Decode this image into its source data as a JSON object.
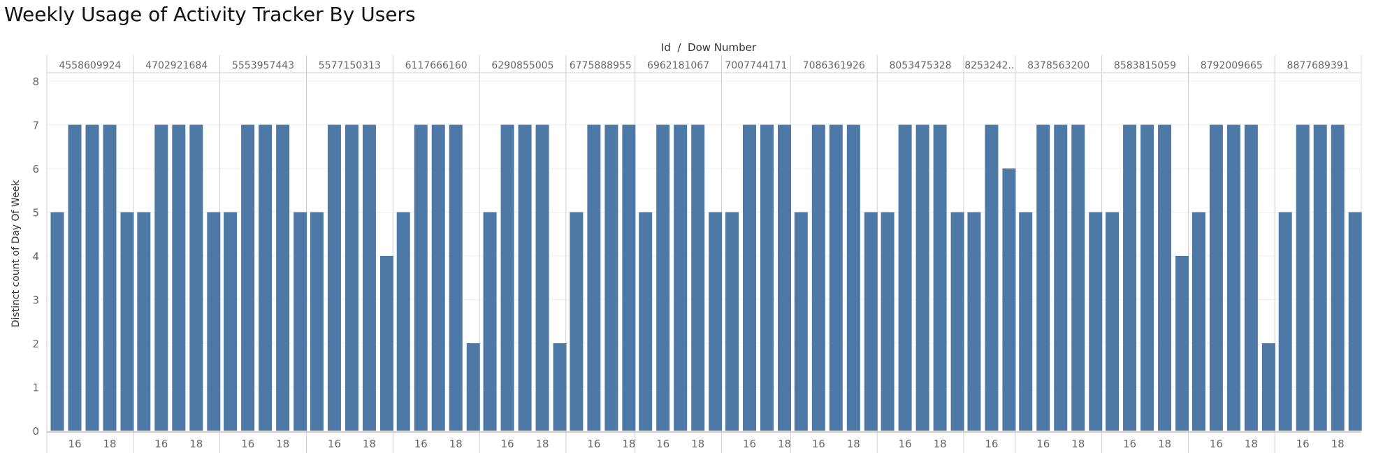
{
  "chart_data": {
    "type": "bar",
    "title": "Weekly Usage of Activity Tracker By Users",
    "column_header": "Id  /  Dow Number",
    "ylabel": "Distinct count of Day Of Week",
    "ylim": [
      0,
      8
    ],
    "yticks": [
      0,
      1,
      2,
      3,
      4,
      5,
      6,
      7,
      8
    ],
    "bar_color": "#4e79a7",
    "x_tick_labels": [
      "16",
      "18"
    ],
    "panels": [
      {
        "id": "4558609924",
        "x": [
          15,
          16,
          17,
          18,
          19
        ],
        "values": [
          5,
          7,
          7,
          7,
          5
        ]
      },
      {
        "id": "4702921684",
        "x": [
          15,
          16,
          17,
          18,
          19
        ],
        "values": [
          5,
          7,
          7,
          7,
          5
        ]
      },
      {
        "id": "5553957443",
        "x": [
          15,
          16,
          17,
          18,
          19
        ],
        "values": [
          5,
          7,
          7,
          7,
          5
        ]
      },
      {
        "id": "5577150313",
        "x": [
          15,
          16,
          17,
          18,
          19
        ],
        "values": [
          5,
          7,
          7,
          7,
          4
        ]
      },
      {
        "id": "6117666160",
        "x": [
          15,
          16,
          17,
          18,
          19
        ],
        "values": [
          5,
          7,
          7,
          7,
          2
        ]
      },
      {
        "id": "6290855005",
        "x": [
          15,
          16,
          17,
          18,
          19
        ],
        "values": [
          5,
          7,
          7,
          7,
          2
        ]
      },
      {
        "id": "6775888955",
        "x": [
          15,
          16,
          17,
          18
        ],
        "values": [
          5,
          7,
          7,
          7
        ]
      },
      {
        "id": "6962181067",
        "x": [
          15,
          16,
          17,
          18,
          19
        ],
        "values": [
          5,
          7,
          7,
          7,
          5
        ]
      },
      {
        "id": "7007744171",
        "x": [
          15,
          16,
          17,
          18
        ],
        "values": [
          5,
          7,
          7,
          7
        ]
      },
      {
        "id": "7086361926",
        "x": [
          15,
          16,
          17,
          18,
          19
        ],
        "values": [
          5,
          7,
          7,
          7,
          5
        ]
      },
      {
        "id": "8053475328",
        "x": [
          15,
          16,
          17,
          18,
          19
        ],
        "values": [
          5,
          7,
          7,
          7,
          5
        ]
      },
      {
        "id": "8253242..",
        "x": [
          15,
          16,
          17
        ],
        "values": [
          5,
          7,
          6
        ]
      },
      {
        "id": "8378563200",
        "x": [
          15,
          16,
          17,
          18,
          19
        ],
        "values": [
          5,
          7,
          7,
          7,
          5
        ]
      },
      {
        "id": "8583815059",
        "x": [
          15,
          16,
          17,
          18,
          19
        ],
        "values": [
          5,
          7,
          7,
          7,
          4
        ]
      },
      {
        "id": "8792009665",
        "x": [
          15,
          16,
          17,
          18,
          19
        ],
        "values": [
          5,
          7,
          7,
          7,
          2
        ]
      },
      {
        "id": "8877689391",
        "x": [
          15,
          16,
          17,
          18,
          19
        ],
        "values": [
          5,
          7,
          7,
          7,
          5
        ]
      }
    ]
  }
}
